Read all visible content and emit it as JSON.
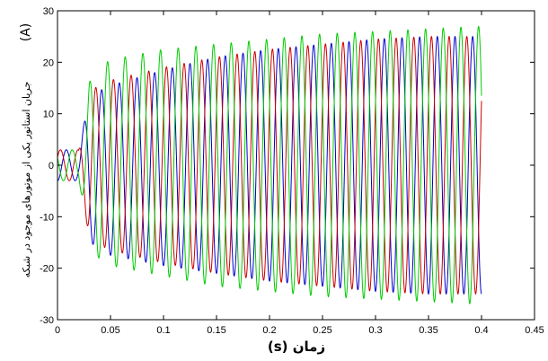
{
  "chart_data": {
    "type": "line",
    "title": "",
    "xlabel": "زمان (s)",
    "ylabel": "جریان استاتور یکی از موتورهای موجود در شبکه",
    "ylabel_unit": "(A)",
    "xlim": [
      0,
      0.45
    ],
    "ylim": [
      -30,
      30
    ],
    "xticks": [
      "0",
      "0.05",
      "0.1",
      "0.15",
      "0.2",
      "0.25",
      "0.3",
      "0.35",
      "0.4",
      "0.45"
    ],
    "yticks": [
      "30",
      "20",
      "10",
      "0",
      "-10",
      "-20",
      "-30"
    ],
    "grid": false,
    "legend": "none",
    "frequency_hz": 60,
    "x_range": [
      0,
      0.4
    ],
    "series": [
      {
        "color": "#0000cc",
        "phase_deg": -90,
        "envelope": {
          "t": [
            0,
            0.02,
            0.025,
            0.03,
            0.035,
            0.05,
            0.1,
            0.15,
            0.2,
            0.25,
            0.3,
            0.35,
            0.4
          ],
          "amp": [
            3,
            3,
            8,
            14,
            15,
            16.5,
            19,
            21,
            22.5,
            23.5,
            24.5,
            25,
            25
          ],
          "offset": [
            0,
            0,
            0,
            0,
            -1,
            -1,
            -0.5,
            0,
            0,
            0,
            0,
            0,
            0
          ]
        }
      },
      {
        "color": "#cc0000",
        "phase_deg": 30,
        "envelope": {
          "t": [
            0,
            0.02,
            0.025,
            0.03,
            0.035,
            0.05,
            0.1,
            0.15,
            0.2,
            0.25,
            0.3,
            0.35,
            0.4
          ],
          "amp": [
            3,
            3,
            8,
            14,
            15,
            16.5,
            19,
            21,
            22.5,
            23.5,
            24.5,
            25,
            25
          ],
          "offset": [
            0,
            0,
            0,
            0,
            0,
            0,
            0,
            0,
            0,
            0,
            0,
            0,
            0
          ]
        }
      },
      {
        "color": "#00cc00",
        "phase_deg": 150,
        "envelope": {
          "t": [
            0,
            0.02,
            0.025,
            0.03,
            0.035,
            0.05,
            0.1,
            0.15,
            0.2,
            0.25,
            0.3,
            0.35,
            0.4
          ],
          "amp": [
            3,
            3,
            8,
            16,
            18,
            20,
            22,
            23.5,
            24.5,
            25.5,
            26,
            26.5,
            27
          ],
          "offset": [
            0,
            0,
            0,
            0,
            0.5,
            0.5,
            0.5,
            0,
            0,
            0,
            0,
            0,
            0
          ]
        }
      }
    ]
  }
}
